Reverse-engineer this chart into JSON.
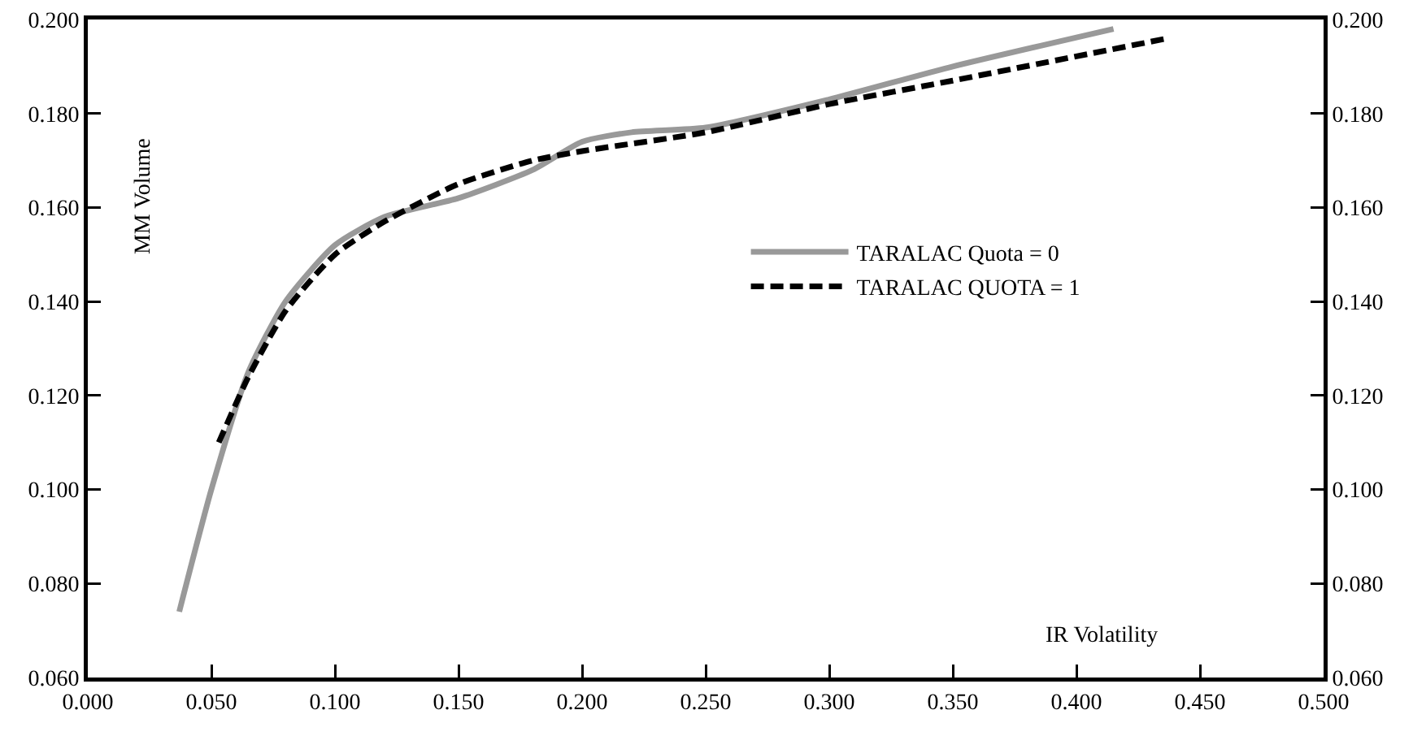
{
  "chart_data": {
    "type": "line",
    "xlabel": "IR Volatility",
    "ylabel": "MM Volume",
    "xlim": [
      0,
      0.5
    ],
    "xticks": [
      {
        "value": 0,
        "label": "0.000"
      },
      {
        "value": 0.05,
        "label": "0.050"
      },
      {
        "value": 0.1,
        "label": "0.100"
      },
      {
        "value": 0.15,
        "label": "0.150"
      },
      {
        "value": 0.2,
        "label": "0.200"
      },
      {
        "value": 0.25,
        "label": "0.250"
      },
      {
        "value": 0.3,
        "label": "0.300"
      },
      {
        "value": 0.35,
        "label": "0.350"
      },
      {
        "value": 0.4,
        "label": "0.400"
      },
      {
        "value": 0.45,
        "label": "0.450"
      },
      {
        "value": 0.5,
        "label": "0.500"
      }
    ],
    "ylim": [
      0.06,
      0.2
    ],
    "yticks": [
      {
        "value": 0.06,
        "label": "0.060"
      },
      {
        "value": 0.08,
        "label": "0.080"
      },
      {
        "value": 0.1,
        "label": "0.100"
      },
      {
        "value": 0.12,
        "label": "0.120"
      },
      {
        "value": 0.14,
        "label": "0.140"
      },
      {
        "value": 0.16,
        "label": "0.160"
      },
      {
        "value": 0.18,
        "label": "0.180"
      },
      {
        "value": 0.2,
        "label": "0.200"
      }
    ],
    "y2lim": [
      0.06,
      0.2
    ],
    "y2ticks": [
      {
        "value": 0.06,
        "label": "0.060"
      },
      {
        "value": 0.08,
        "label": "0.080"
      },
      {
        "value": 0.1,
        "label": "0.100"
      },
      {
        "value": 0.12,
        "label": "0.120"
      },
      {
        "value": 0.14,
        "label": "0.140"
      },
      {
        "value": 0.16,
        "label": "0.160"
      },
      {
        "value": 0.18,
        "label": "0.180"
      },
      {
        "value": 0.2,
        "label": "0.200"
      }
    ],
    "grid": false,
    "legend": "right",
    "marker": "none",
    "series": [
      {
        "name": "TARALAC Quota = 0",
        "color": "#999999",
        "line_style": "solid",
        "x": [
          0.037,
          0.05,
          0.065,
          0.08,
          0.1,
          0.12,
          0.15,
          0.18,
          0.2,
          0.22,
          0.25,
          0.3,
          0.35,
          0.415
        ],
        "values": [
          0.074,
          0.1,
          0.125,
          0.14,
          0.152,
          0.158,
          0.162,
          0.168,
          0.174,
          0.176,
          0.177,
          0.183,
          0.19,
          0.198
        ]
      },
      {
        "name": "TARALAC QUOTA = 1",
        "color": "#000000",
        "line_style": "dashed",
        "x": [
          0.053,
          0.065,
          0.08,
          0.1,
          0.12,
          0.15,
          0.18,
          0.2,
          0.25,
          0.3,
          0.35,
          0.437
        ],
        "values": [
          0.11,
          0.124,
          0.138,
          0.15,
          0.157,
          0.165,
          0.17,
          0.172,
          0.176,
          0.182,
          0.187,
          0.196
        ]
      }
    ]
  }
}
